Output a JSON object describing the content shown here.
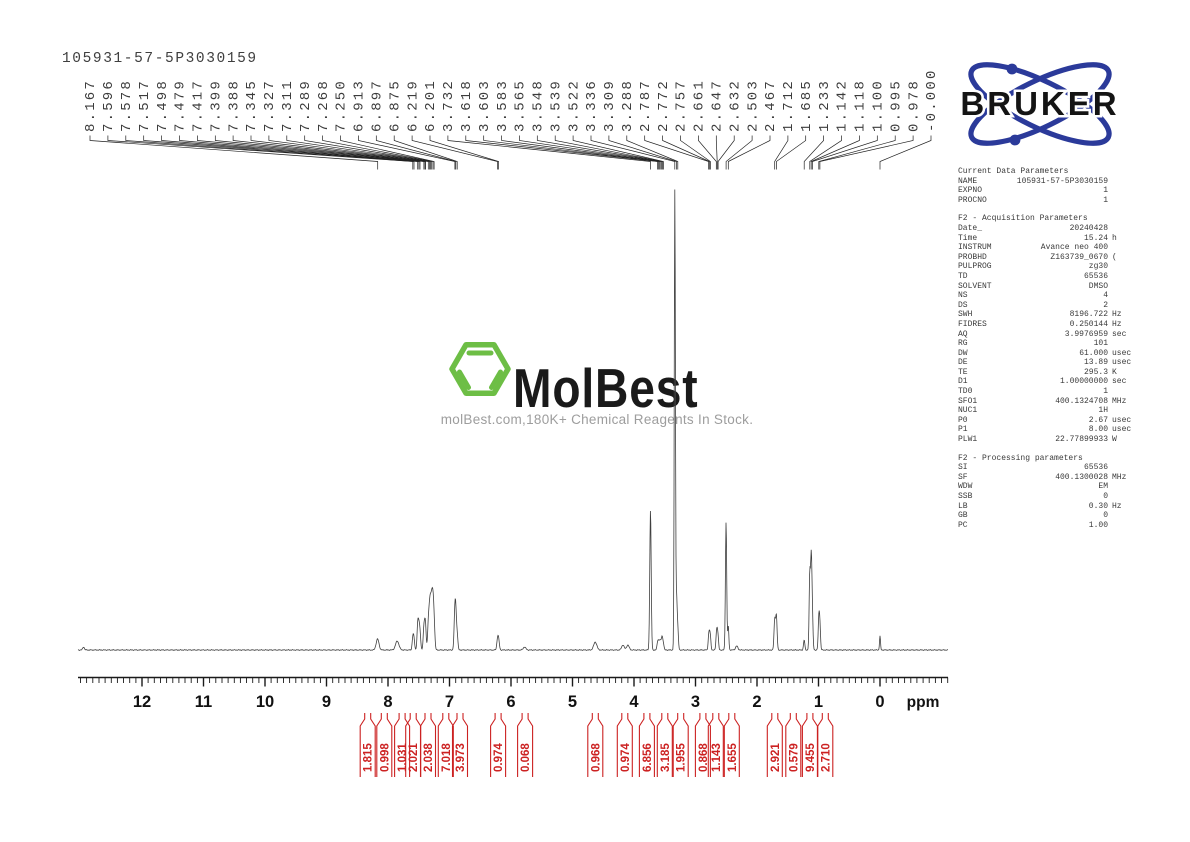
{
  "title": "105931-57-5P3030159",
  "brand": {
    "bruker": "BRUKER",
    "molbest": "MolBest",
    "molbest_tagline": "molBest.com,180K+ Chemical Reagents In Stock."
  },
  "colors": {
    "integral_red": "#cc2121",
    "bruker_blue": "#2b3a9a",
    "molbest_green": "#6dbe45",
    "trace": "#3f3f3f",
    "label_gray": "#3c3c3c",
    "tagline_gray": "#9d9d9d"
  },
  "chart_data": {
    "type": "line",
    "kind": "1H NMR spectrum",
    "title": "105931-57-5P3030159",
    "xlabel": "ppm",
    "x_ticks": [
      "12",
      "11",
      "10",
      "9",
      "8",
      "7",
      "6",
      "5",
      "4",
      "3",
      "2",
      "1",
      "0"
    ],
    "x_range_ppm": [
      13.05,
      -1.1
    ],
    "nucleus": "1H",
    "solvent": "DMSO",
    "grid": false,
    "peak_labels_ppm": [
      "8.167",
      "7.596",
      "7.578",
      "7.517",
      "7.498",
      "7.479",
      "7.417",
      "7.399",
      "7.388",
      "7.345",
      "7.327",
      "7.311",
      "7.289",
      "7.268",
      "7.250",
      "6.913",
      "6.897",
      "6.875",
      "6.219",
      "6.201",
      "3.732",
      "3.618",
      "3.603",
      "3.583",
      "3.565",
      "3.548",
      "3.539",
      "3.522",
      "3.336",
      "3.309",
      "3.288",
      "2.787",
      "2.772",
      "2.757",
      "2.661",
      "2.647",
      "2.632",
      "2.503",
      "2.467",
      "1.712",
      "1.685",
      "1.233",
      "1.142",
      "1.118",
      "1.100",
      "0.995",
      "0.978",
      "-0.000"
    ],
    "peaks_ppm_height_width": [
      [
        12.95,
        3,
        1.2
      ],
      [
        8.17,
        11,
        2.0
      ],
      [
        7.85,
        9,
        2.4
      ],
      [
        7.596,
        12,
        1.0
      ],
      [
        7.578,
        10,
        1.0
      ],
      [
        7.517,
        24,
        1.0
      ],
      [
        7.498,
        20,
        1.0
      ],
      [
        7.479,
        16,
        1.0
      ],
      [
        7.417,
        20,
        1.0
      ],
      [
        7.399,
        17,
        1.0
      ],
      [
        7.388,
        15,
        1.0
      ],
      [
        7.345,
        24,
        1.0
      ],
      [
        7.327,
        28,
        1.0
      ],
      [
        7.311,
        33,
        1.0
      ],
      [
        7.289,
        46,
        1.2
      ],
      [
        7.268,
        36,
        1.1
      ],
      [
        7.25,
        24,
        1.1
      ],
      [
        6.913,
        36,
        1.1
      ],
      [
        6.897,
        28,
        1.0
      ],
      [
        6.875,
        15,
        1.0
      ],
      [
        6.219,
        10,
        1.1
      ],
      [
        6.201,
        9,
        1.1
      ],
      [
        5.78,
        3,
        1.8
      ],
      [
        4.63,
        8,
        2.2
      ],
      [
        4.18,
        5,
        1.8
      ],
      [
        4.1,
        5,
        1.8
      ],
      [
        3.732,
        140,
        1.0
      ],
      [
        3.618,
        6,
        0.9
      ],
      [
        3.603,
        7,
        0.9
      ],
      [
        3.583,
        8,
        0.9
      ],
      [
        3.565,
        6,
        0.9
      ],
      [
        3.548,
        7,
        0.9
      ],
      [
        3.539,
        7,
        0.9
      ],
      [
        3.522,
        6,
        0.9
      ],
      [
        3.336,
        460,
        0.8
      ],
      [
        3.309,
        52,
        0.9
      ],
      [
        3.288,
        20,
        0.9
      ],
      [
        2.787,
        12,
        0.8
      ],
      [
        2.772,
        14,
        0.8
      ],
      [
        2.757,
        11,
        0.8
      ],
      [
        2.661,
        13,
        0.8
      ],
      [
        2.647,
        16,
        0.8
      ],
      [
        2.632,
        11,
        0.8
      ],
      [
        2.503,
        128,
        0.9
      ],
      [
        2.467,
        24,
        0.8
      ],
      [
        2.33,
        4,
        1.6
      ],
      [
        1.712,
        30,
        1.0
      ],
      [
        1.685,
        34,
        1.0
      ],
      [
        1.233,
        10,
        0.9
      ],
      [
        1.142,
        75,
        0.9
      ],
      [
        1.118,
        88,
        0.9
      ],
      [
        1.1,
        34,
        0.9
      ],
      [
        0.995,
        30,
        0.9
      ],
      [
        0.978,
        25,
        0.9
      ],
      [
        0.0,
        14,
        0.7
      ]
    ],
    "integrals": [
      {
        "value": "1.815",
        "ppm": 8.33
      },
      {
        "value": "0.998",
        "ppm": 8.06
      },
      {
        "value": "1.031",
        "ppm": 7.77
      },
      {
        "value": "2.021",
        "ppm": 7.59
      },
      {
        "value": "2.038",
        "ppm": 7.35
      },
      {
        "value": "7.018",
        "ppm": 7.06
      },
      {
        "value": "3.973",
        "ppm": 6.83
      },
      {
        "value": "0.974",
        "ppm": 6.21
      },
      {
        "value": "0.068",
        "ppm": 5.77
      },
      {
        "value": "0.968",
        "ppm": 4.63
      },
      {
        "value": "0.974",
        "ppm": 4.15
      },
      {
        "value": "6.856",
        "ppm": 3.79
      },
      {
        "value": "3.185",
        "ppm": 3.5
      },
      {
        "value": "1.955",
        "ppm": 3.24
      },
      {
        "value": "0.868",
        "ppm": 2.88
      },
      {
        "value": "1.143",
        "ppm": 2.67
      },
      {
        "value": "1.655",
        "ppm": 2.41
      },
      {
        "value": "2.921",
        "ppm": 1.71
      },
      {
        "value": "0.579",
        "ppm": 1.41
      },
      {
        "value": "9.455",
        "ppm": 1.14
      },
      {
        "value": "2.710",
        "ppm": 0.89
      }
    ]
  },
  "parameters": {
    "sections": [
      {
        "header": "Current Data Parameters",
        "rows": [
          [
            "NAME",
            "105931-57-5P3030159",
            ""
          ],
          [
            "EXPNO",
            "1",
            ""
          ],
          [
            "PROCNO",
            "1",
            ""
          ]
        ]
      },
      {
        "header": "F2 - Acquisition Parameters",
        "rows": [
          [
            "Date_",
            "20240428",
            ""
          ],
          [
            "Time",
            "15.24",
            "h"
          ],
          [
            "INSTRUM",
            "Avance neo 400",
            ""
          ],
          [
            "PROBHD",
            "Z163739_0670",
            "("
          ],
          [
            "PULPROG",
            "zg30",
            ""
          ],
          [
            "TD",
            "65536",
            ""
          ],
          [
            "SOLVENT",
            "DMSO",
            ""
          ],
          [
            "NS",
            "4",
            ""
          ],
          [
            "DS",
            "2",
            ""
          ],
          [
            "SWH",
            "8196.722",
            "Hz"
          ],
          [
            "FIDRES",
            "0.250144",
            "Hz"
          ],
          [
            "AQ",
            "3.9976959",
            "sec"
          ],
          [
            "RG",
            "101",
            ""
          ],
          [
            "DW",
            "61.000",
            "usec"
          ],
          [
            "DE",
            "13.89",
            "usec"
          ],
          [
            "TE",
            "295.3",
            "K"
          ],
          [
            "D1",
            "1.00000000",
            "sec"
          ],
          [
            "TD0",
            "1",
            ""
          ],
          [
            "SFO1",
            "400.1324708",
            "MHz"
          ],
          [
            "NUC1",
            "1H",
            ""
          ],
          [
            "P0",
            "2.67",
            "usec"
          ],
          [
            "P1",
            "8.00",
            "usec"
          ],
          [
            "PLW1",
            "22.77899933",
            "W"
          ]
        ]
      },
      {
        "header": "F2 - Processing parameters",
        "rows": [
          [
            "SI",
            "65536",
            ""
          ],
          [
            "SF",
            "400.1300028",
            "MHz"
          ],
          [
            "WDW",
            "EM",
            ""
          ],
          [
            "SSB",
            "0",
            ""
          ],
          [
            "LB",
            "0.30",
            "Hz"
          ],
          [
            "GB",
            "0",
            ""
          ],
          [
            "PC",
            "1.00",
            ""
          ]
        ]
      }
    ]
  }
}
